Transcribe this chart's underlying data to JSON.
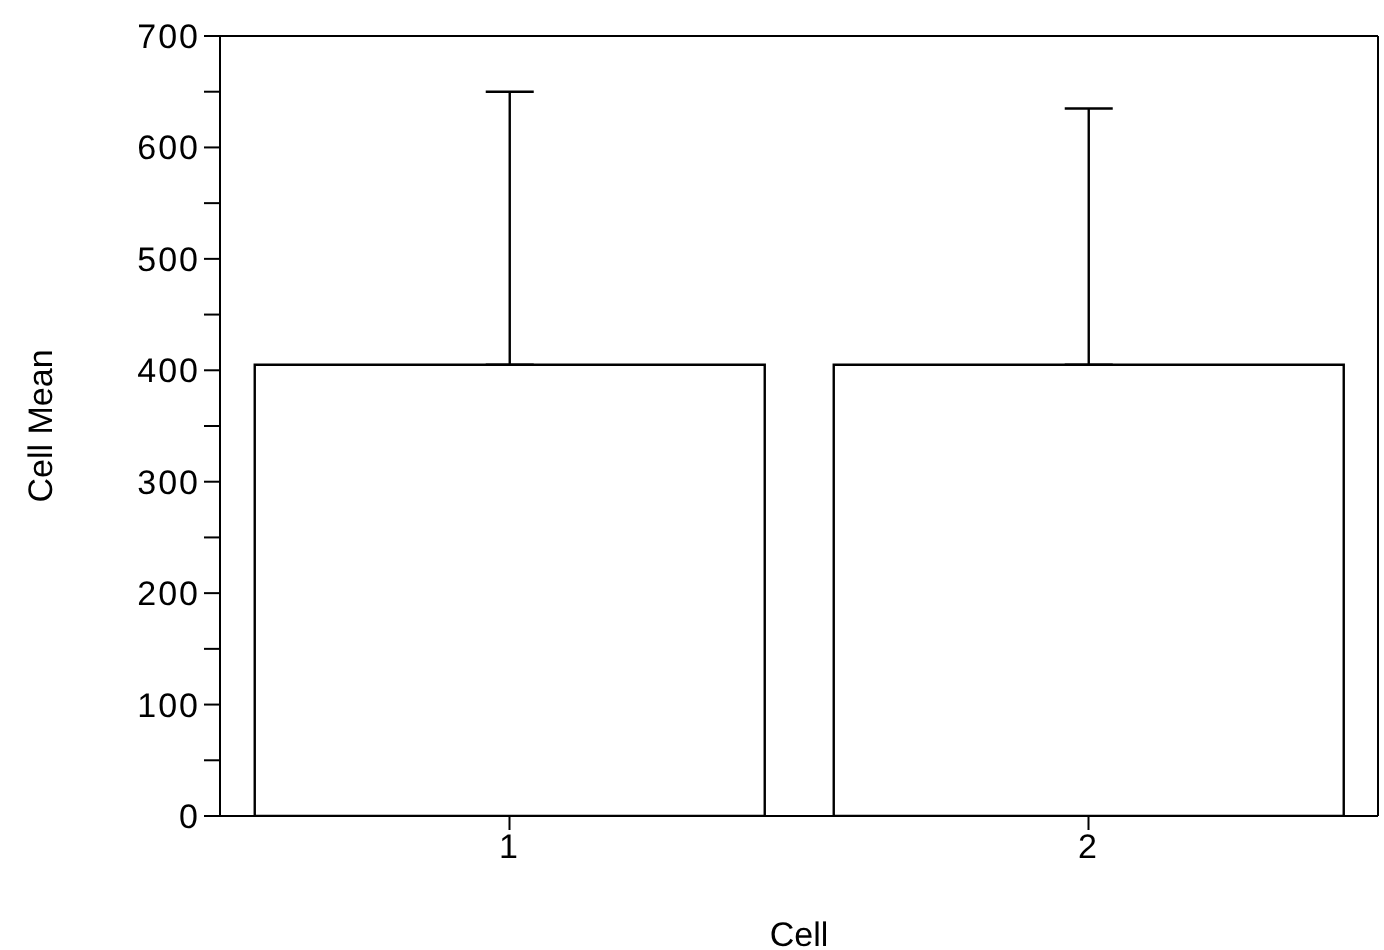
{
  "chart_data": {
    "type": "bar",
    "xlabel": "Cell",
    "ylabel": "Cell Mean",
    "categories": [
      "1",
      "2"
    ],
    "values": [
      405,
      405
    ],
    "color": "#ffffff",
    "errors": [
      [
        405,
        650
      ],
      [
        405,
        635
      ]
    ],
    "ylim": [
      0,
      700
    ],
    "yticks": [
      0,
      {
        "value": 50,
        "label": null
      },
      100,
      {
        "value": 150,
        "label": null
      },
      200,
      {
        "value": 250,
        "label": null
      },
      300,
      {
        "value": 350,
        "label": null
      },
      400,
      {
        "value": 450,
        "label": null
      },
      500,
      {
        "value": 550,
        "label": null
      },
      600,
      {
        "value": 650,
        "label": null
      },
      700
    ],
    "grid": false,
    "legend": false
  }
}
